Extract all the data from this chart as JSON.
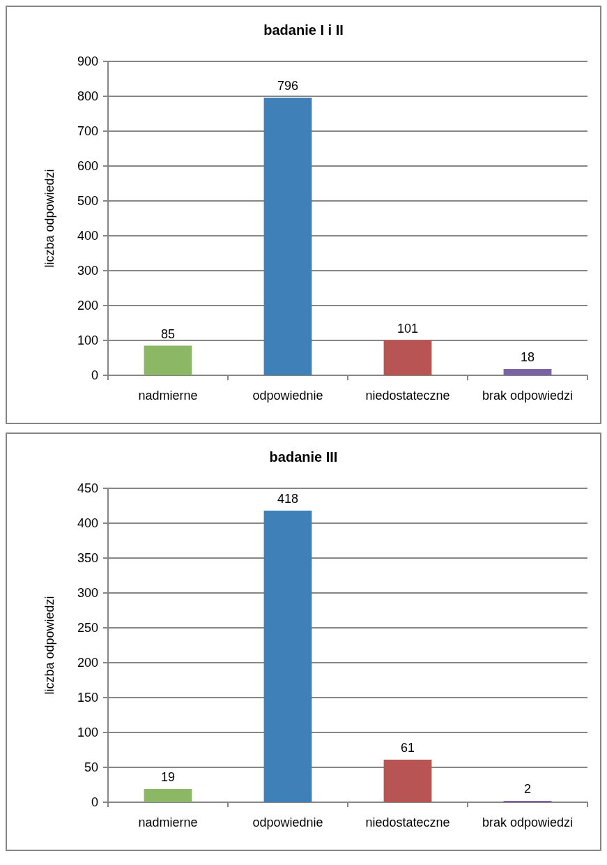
{
  "chart_data": [
    {
      "type": "bar",
      "title": "badanie I i II",
      "ylabel": "liczba odpowiedzi",
      "categories": [
        "nadmierne",
        "odpowiednie",
        "niedostateczne",
        "brak odpowiedzi"
      ],
      "values": [
        85,
        796,
        101,
        18
      ],
      "colors": [
        "#8cb865",
        "#3f80b8",
        "#b85454",
        "#7a62a4"
      ],
      "ylim": [
        0,
        900
      ],
      "yticks": [
        0,
        100,
        200,
        300,
        400,
        500,
        600,
        700,
        800,
        900
      ],
      "grid": "y",
      "data_labels": true
    },
    {
      "type": "bar",
      "title": "badanie III",
      "ylabel": "liczba odpowiedzi",
      "categories": [
        "nadmierne",
        "odpowiednie",
        "niedostateczne",
        "brak odpowiedzi"
      ],
      "values": [
        19,
        418,
        61,
        2
      ],
      "colors": [
        "#8cb865",
        "#3f80b8",
        "#b85454",
        "#7a62a4"
      ],
      "ylim": [
        0,
        450
      ],
      "yticks": [
        0,
        50,
        100,
        150,
        200,
        250,
        300,
        350,
        400,
        450
      ],
      "grid": "y",
      "data_labels": true
    }
  ]
}
